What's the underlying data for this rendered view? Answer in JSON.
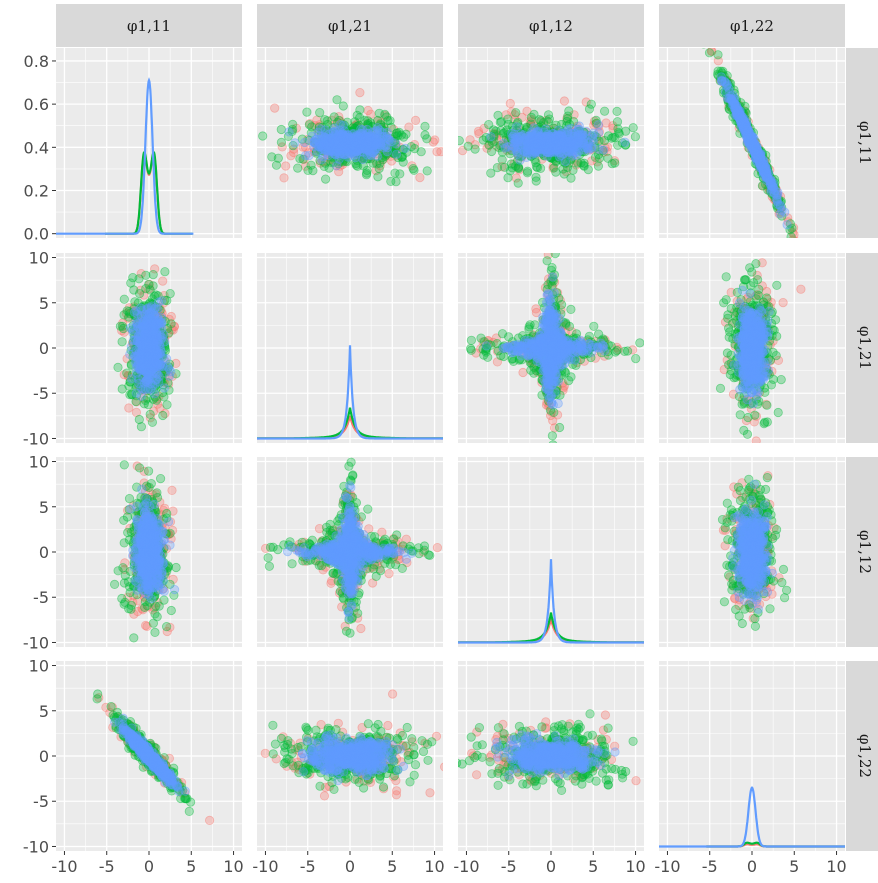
{
  "chart_data": {
    "type": "scatter",
    "title": "",
    "layout": "pairs-matrix",
    "variables": [
      {
        "key": "p11",
        "label": "φ1,11"
      },
      {
        "key": "p21",
        "label": "φ1,21"
      },
      {
        "key": "p12",
        "label": "φ1,12"
      },
      {
        "key": "p22",
        "label": "φ1,22"
      }
    ],
    "x_axis": {
      "range": [
        -11,
        11
      ],
      "ticks": [
        "-10",
        "-5",
        "0",
        "5",
        "10"
      ]
    },
    "y_axis_row1": {
      "range": [
        -0.02,
        0.86
      ],
      "ticks": [
        "0.0",
        "0.2",
        "0.4",
        "0.6",
        "0.8"
      ]
    },
    "y_axis_other_rows": {
      "range": [
        -10.5,
        10.5
      ],
      "ticks": [
        "-10",
        "-5",
        "0",
        "5",
        "10"
      ]
    },
    "grid": true,
    "series_colors": {
      "red": "#F8766D",
      "green": "#00BA38",
      "blue": "#619CFF"
    },
    "panels": [
      {
        "row": 1,
        "col": 1,
        "kind": "density",
        "peaks": {
          "red": 0.44,
          "green": 0.45,
          "blue": 0.71
        }
      },
      {
        "row": 1,
        "col": 2,
        "kind": "scatter",
        "pattern": "horizontal-blob",
        "y_center": 0.42
      },
      {
        "row": 1,
        "col": 3,
        "kind": "scatter",
        "pattern": "horizontal-blob",
        "y_center": 0.42
      },
      {
        "row": 1,
        "col": 4,
        "kind": "scatter",
        "pattern": "negative-diagonal",
        "y_at_x0": 0.42,
        "slope": -0.085
      },
      {
        "row": 2,
        "col": 1,
        "kind": "scatter",
        "pattern": "vertical-blob"
      },
      {
        "row": 2,
        "col": 2,
        "kind": "density",
        "peaks": {
          "red": 2.5,
          "green": 3.4,
          "blue": 10.3
        }
      },
      {
        "row": 2,
        "col": 3,
        "kind": "scatter",
        "pattern": "cross"
      },
      {
        "row": 2,
        "col": 4,
        "kind": "scatter",
        "pattern": "vertical-blob"
      },
      {
        "row": 3,
        "col": 1,
        "kind": "scatter",
        "pattern": "vertical-blob"
      },
      {
        "row": 3,
        "col": 2,
        "kind": "scatter",
        "pattern": "cross"
      },
      {
        "row": 3,
        "col": 3,
        "kind": "density",
        "peaks": {
          "red": 2.6,
          "green": 3.3,
          "blue": 9.2
        }
      },
      {
        "row": 3,
        "col": 4,
        "kind": "scatter",
        "pattern": "vertical-blob"
      },
      {
        "row": 4,
        "col": 1,
        "kind": "scatter",
        "pattern": "negative-diagonal",
        "y_at_x0": 0,
        "slope": -1.0
      },
      {
        "row": 4,
        "col": 2,
        "kind": "scatter",
        "pattern": "horizontal-blob",
        "y_center": 0
      },
      {
        "row": 4,
        "col": 3,
        "kind": "scatter",
        "pattern": "horizontal-blob",
        "y_center": 0
      },
      {
        "row": 4,
        "col": 4,
        "kind": "density",
        "peaks": {
          "red": 0.3,
          "green": 0.5,
          "blue": 6.5
        }
      }
    ]
  }
}
